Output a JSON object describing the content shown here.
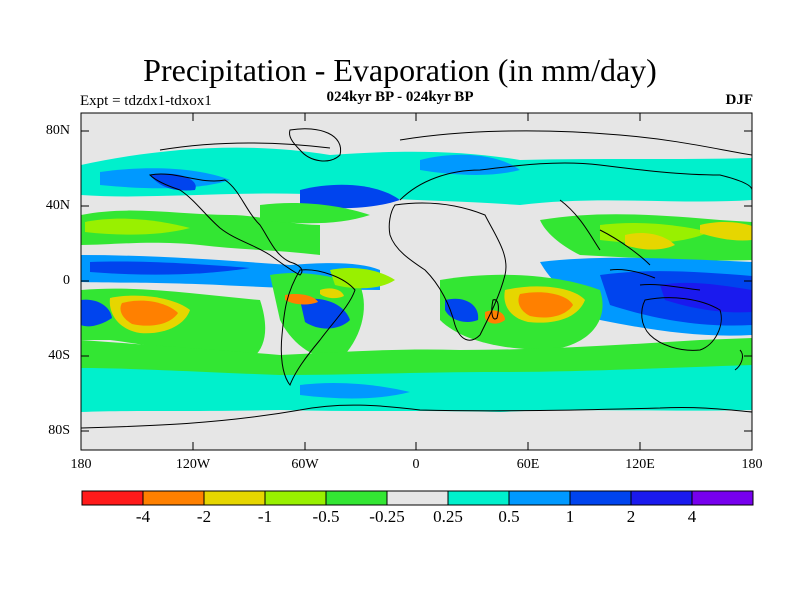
{
  "title": "Precipitation - Evaporation (in mm/day)",
  "subtitle": "024kyr BP - 024kyr BP",
  "experiment": "Expt = tdzdx1-tdxox1",
  "season": "DJF",
  "axes": {
    "y_labels": [
      "80N",
      "40N",
      "0",
      "40S",
      "80S"
    ],
    "x_labels": [
      "180",
      "120W",
      "60W",
      "0",
      "60E",
      "120E",
      "180"
    ]
  },
  "colorbar": {
    "labels": [
      "-4",
      "-2",
      "-1",
      "-0.5",
      "-0.25",
      "0.25",
      "0.5",
      "1",
      "2",
      "4"
    ],
    "colors": [
      "#ff1a1a",
      "#ff8000",
      "#e6d600",
      "#99f000",
      "#33e633",
      "#e6e6e6",
      "#00f0cc",
      "#0099ff",
      "#0044ee",
      "#1a1aee",
      "#7700ee"
    ]
  },
  "colors": {
    "background": "#e6e6e6",
    "coastline": "#000000"
  }
}
